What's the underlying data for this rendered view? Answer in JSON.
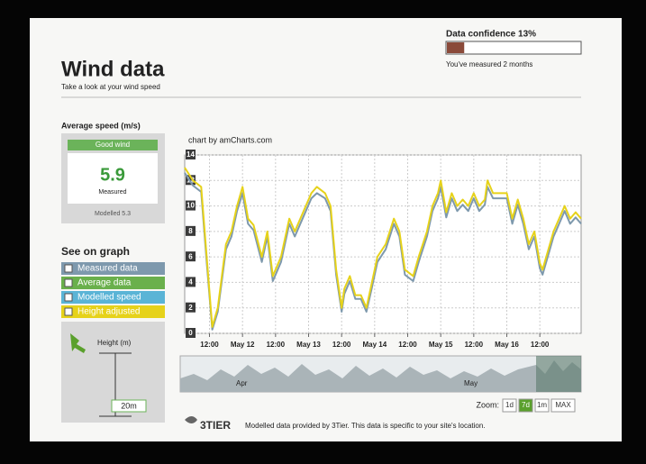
{
  "header": {
    "title": "Wind data",
    "subtitle": "Take a look at your wind speed",
    "confidence": {
      "label": "Data confidence 13%",
      "value": 13
    },
    "confidence_note": "You've measured 2 months"
  },
  "average_speed": {
    "title": "Average speed (m/s)",
    "status": "Good wind",
    "value": "5.9",
    "value_caption": "Measured",
    "modelled": "Modelled 5.3"
  },
  "see_on_graph": {
    "title": "See on graph",
    "toggles": [
      "Average data",
      "Modelled speed"
    ],
    "height_label": "Height (m)",
    "height_value": "20m"
  },
  "chart_data": {
    "type": "line",
    "credit": "chart by amCharts.com",
    "x": [
      0,
      3,
      6,
      8,
      10,
      12,
      15,
      17,
      19,
      21,
      23,
      25,
      28,
      30,
      32,
      35,
      38,
      40,
      43,
      46,
      48,
      51,
      53,
      55,
      57,
      58,
      60,
      62,
      64,
      66,
      68,
      70,
      73,
      76,
      78,
      80,
      83,
      85,
      88,
      90,
      92,
      93,
      95,
      97,
      99,
      101,
      103,
      105,
      107,
      109,
      110,
      112,
      115,
      117,
      119,
      121,
      123,
      125,
      127,
      129,
      130,
      132,
      134,
      136,
      138,
      140,
      142,
      144
    ],
    "series": [
      {
        "name": "Measured data",
        "color": "#7e99ad",
        "values": [
          12.6,
          11.6,
          11.1,
          5.6,
          0.3,
          1.7,
          6.6,
          7.6,
          9.6,
          11,
          8.6,
          8.1,
          5.6,
          7.6,
          4.1,
          5.6,
          8.6,
          7.6,
          9.1,
          10.6,
          11,
          10.6,
          9.6,
          4.6,
          1.7,
          3.1,
          4.1,
          2.7,
          2.7,
          1.7,
          3.6,
          5.6,
          6.6,
          8.6,
          7.6,
          4.6,
          4.1,
          5.6,
          7.6,
          9.6,
          10.6,
          11.5,
          9.1,
          10.6,
          9.6,
          10.1,
          9.6,
          10.6,
          9.6,
          10.1,
          11.5,
          10.6,
          10.6,
          10.6,
          8.6,
          10.1,
          8.6,
          6.6,
          7.6,
          5.1,
          4.6,
          6.1,
          7.6,
          8.6,
          9.6,
          8.6,
          9.1,
          8.6
        ]
      },
      {
        "name": "Height adjusted",
        "color": "#e6d21a",
        "values": [
          13,
          12,
          11.5,
          6,
          0.5,
          2,
          7,
          8,
          10,
          11.5,
          9,
          8.5,
          6,
          8,
          4.5,
          6,
          9,
          8,
          9.5,
          11,
          11.5,
          11,
          10,
          5,
          2,
          3.5,
          4.5,
          3,
          3,
          2,
          4,
          6,
          7,
          9,
          8,
          5,
          4.5,
          6,
          8,
          10,
          11,
          12,
          9.5,
          11,
          10,
          10.5,
          10,
          11,
          10,
          10.5,
          12,
          11,
          11,
          11,
          9,
          10.5,
          9,
          7,
          8,
          5.5,
          5,
          6.5,
          8,
          9,
          10,
          9,
          9.5,
          9
        ]
      }
    ],
    "xlim": [
      0,
      144
    ],
    "xticks": [
      {
        "value": 9,
        "label": "12:00"
      },
      {
        "value": 21,
        "label": "May 12"
      },
      {
        "value": 33,
        "label": "12:00"
      },
      {
        "value": 45,
        "label": "May 13"
      },
      {
        "value": 57,
        "label": "12:00"
      },
      {
        "value": 69,
        "label": "May 14"
      },
      {
        "value": 81,
        "label": "12:00"
      },
      {
        "value": 93,
        "label": "May 15"
      },
      {
        "value": 105,
        "label": "12:00"
      },
      {
        "value": 117,
        "label": "May 16"
      },
      {
        "value": 129,
        "label": "12:00"
      }
    ],
    "ylim": [
      0,
      14
    ],
    "yticks": [
      0,
      2,
      4,
      6,
      8,
      10,
      12,
      14
    ],
    "grid": true,
    "navigator_labels": [
      "Apr",
      "May"
    ],
    "zoom_label": "Zoom:",
    "zoom_buttons": [
      "1d",
      "7d",
      "1m",
      "MAX"
    ],
    "active_zoom": 1
  },
  "footer": {
    "logo": "3TIER",
    "note": "Modelled data provided by 3Tier. This data is specific to your site's location."
  }
}
